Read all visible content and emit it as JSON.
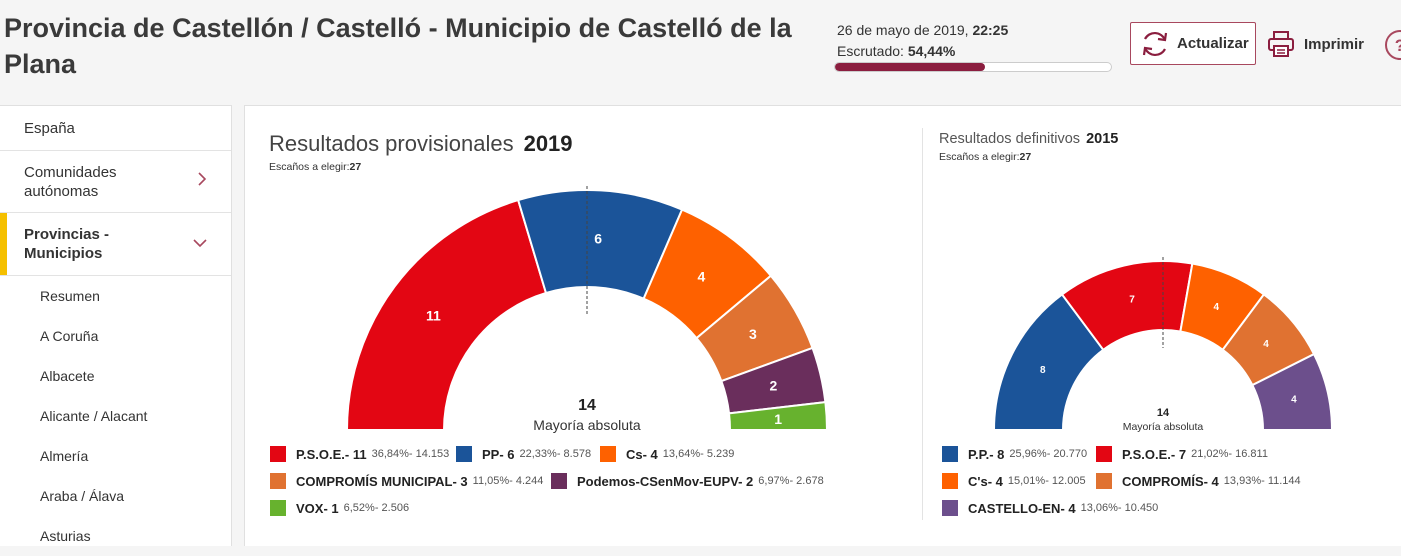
{
  "header": {
    "title": "Provincia de Castellón / Castelló - Municipio de Castelló de la Plana",
    "date": "26 de mayo de 2019,",
    "time": "22:25",
    "scrutiny_label": "Escrutado:",
    "scrutiny_value": "54,44%",
    "scrutiny_fraction": 0.5444,
    "update_label": "Actualizar",
    "print_label": "Imprimir",
    "help_label": "?"
  },
  "sidebar": {
    "items": [
      {
        "label": "España"
      },
      {
        "label": "Comunidades autónomas"
      },
      {
        "label": "Provincias - Municipios"
      }
    ],
    "subitems": [
      "Resumen",
      "A Coruña",
      "Albacete",
      "Alicante / Alacant",
      "Almería",
      "Araba / Álava",
      "Asturias"
    ]
  },
  "results_2019": {
    "heading": "Resultados provisionales",
    "year": "2019",
    "seats_label": "Escaños a elegir:",
    "seats_value": "27"
  },
  "results_2015": {
    "heading": "Resultados definitivos",
    "year": "2015",
    "seats_label": "Escaños a elegir:",
    "seats_value": "27"
  },
  "colors": {
    "psoe": "#e30613",
    "pp": "#1b5499",
    "cs": "#fe6100",
    "compromis": "#e07231",
    "podemos": "#6a2e5c",
    "vox": "#67b22e",
    "castellon_en": "#6c4f8c",
    "accent": "#8b1e3f"
  },
  "chart_data": [
    {
      "type": "parliament-semicircle",
      "title": "Resultados provisionales 2019",
      "total_seats": 27,
      "majority_value": "14",
      "majority_label": "Mayoría absoluta",
      "series": [
        {
          "name": "P.S.O.E.",
          "seats": 11,
          "seats_label": "11",
          "legend": "P.S.O.E.- 11",
          "stats": "36,84%- 14.153",
          "color": "#e30613"
        },
        {
          "name": "PP",
          "seats": 6,
          "seats_label": "6",
          "legend": "PP- 6",
          "stats": "22,33%- 8.578",
          "color": "#1b5499"
        },
        {
          "name": "Cs",
          "seats": 4,
          "seats_label": "4",
          "legend": "Cs- 4",
          "stats": "13,64%- 5.239",
          "color": "#fe6100"
        },
        {
          "name": "COMPROMÍS MUNICIPAL",
          "seats": 3,
          "seats_label": "3",
          "legend": "COMPROMÍS MUNICIPAL- 3",
          "stats": "11,05%- 4.244",
          "color": "#e07231"
        },
        {
          "name": "Podemos-CSenMov-EUPV",
          "seats": 2,
          "seats_label": "2",
          "legend": "Podemos-CSenMov-EUPV- 2",
          "stats": "6,97%- 2.678",
          "color": "#6a2e5c"
        },
        {
          "name": "VOX",
          "seats": 1,
          "seats_label": "1",
          "legend": "VOX- 1",
          "stats": "6,52%- 2.506",
          "color": "#67b22e"
        }
      ]
    },
    {
      "type": "parliament-semicircle",
      "title": "Resultados definitivos 2015",
      "total_seats": 27,
      "majority_value": "14",
      "majority_label": "Mayoría absoluta",
      "series": [
        {
          "name": "P.P.",
          "seats": 8,
          "seats_label": "8",
          "legend": "P.P.- 8",
          "stats": "25,96%- 20.770",
          "color": "#1b5499"
        },
        {
          "name": "P.S.O.E.",
          "seats": 7,
          "seats_label": "7",
          "legend": "P.S.O.E.- 7",
          "stats": "21,02%- 16.811",
          "color": "#e30613"
        },
        {
          "name": "C's",
          "seats": 4,
          "seats_label": "4",
          "legend": "C's- 4",
          "stats": "15,01%- 12.005",
          "color": "#fe6100"
        },
        {
          "name": "COMPROMÍS",
          "seats": 4,
          "seats_label": "4",
          "legend": "COMPROMÍS- 4",
          "stats": "13,93%- 11.144",
          "color": "#e07231"
        },
        {
          "name": "CASTELLO-EN",
          "seats": 4,
          "seats_label": "4",
          "legend": "CASTELLO-EN- 4",
          "stats": "13,06%- 10.450",
          "color": "#6c4f8c"
        }
      ]
    }
  ]
}
